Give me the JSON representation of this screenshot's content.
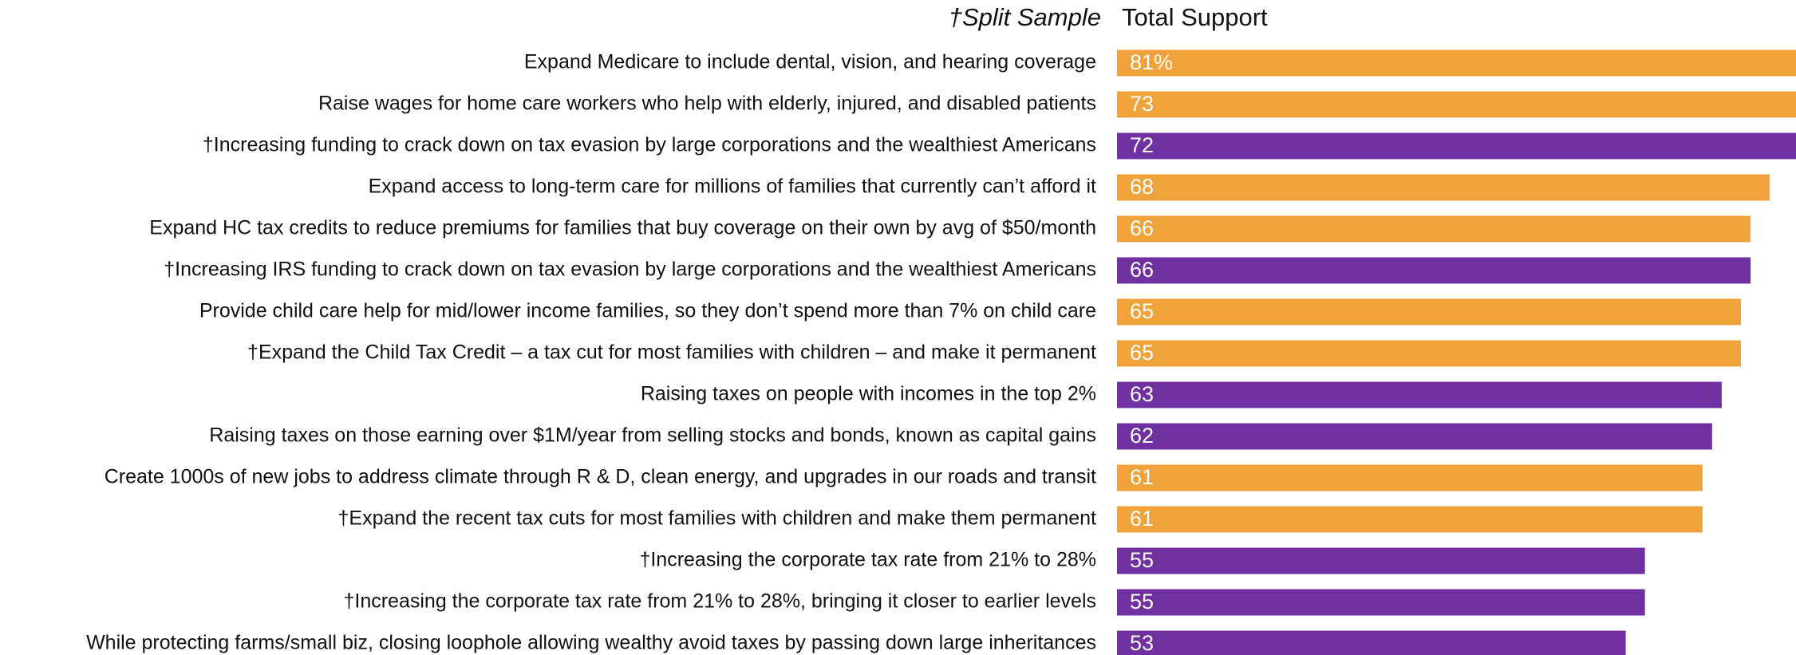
{
  "chart_data": {
    "type": "bar",
    "orientation": "horizontal",
    "header_left": "†Split Sample",
    "header_right": "Total Support",
    "categories": [
      "Expand Medicare to include dental, vision, and hearing coverage",
      "Raise wages for home care workers who help with elderly, injured, and disabled patients",
      "†Increasing funding to crack down on tax evasion by large corporations and the wealthiest Americans",
      "Expand access to long-term care for millions of families that currently can’t afford it",
      "Expand HC tax credits to reduce premiums for families that buy coverage on their own by avg of $50/month",
      "†Increasing IRS funding to crack down on tax evasion by large corporations and the wealthiest Americans",
      "Provide child care help for mid/lower income families, so they don’t spend more than 7% on child care",
      "†Expand the Child Tax Credit – a tax cut for most families with children – and make it permanent",
      "Raising taxes on people with incomes in the top 2%",
      "Raising taxes on those earning over $1M/year from selling stocks and bonds, known as capital gains",
      "Create 1000s of new jobs to address climate through R & D, clean energy, and upgrades in our roads and transit",
      "†Expand the recent tax cuts for most families with children and make them permanent",
      "†Increasing the corporate tax rate from 21% to 28%",
      "†Increasing the corporate tax rate from 21% to 28%, bringing it closer to earlier levels",
      "While protecting farms/small biz, closing loophole allowing wealthy avoid taxes by passing down large inheritances"
    ],
    "values": [
      81,
      73,
      72,
      68,
      66,
      66,
      65,
      65,
      63,
      62,
      61,
      61,
      55,
      55,
      53
    ],
    "value_labels": [
      "81%",
      "73",
      "72",
      "68",
      "66",
      "66",
      "65",
      "65",
      "63",
      "62",
      "61",
      "61",
      "55",
      "55",
      "53"
    ],
    "colors": [
      "#f0a33a",
      "#f0a33a",
      "#7030a0",
      "#f0a33a",
      "#f0a33a",
      "#7030a0",
      "#f0a33a",
      "#f0a33a",
      "#7030a0",
      "#7030a0",
      "#f0a33a",
      "#f0a33a",
      "#7030a0",
      "#7030a0",
      "#7030a0"
    ]
  }
}
